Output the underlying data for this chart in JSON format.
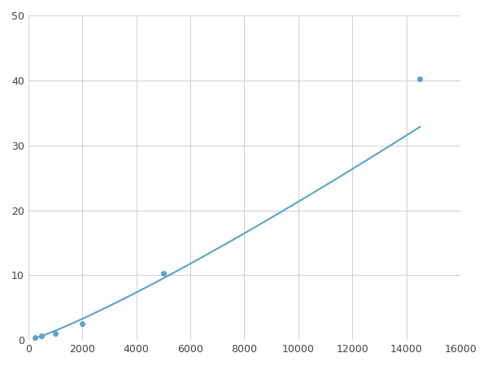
{
  "x": [
    250,
    500,
    1000,
    2000,
    5000,
    14500
  ],
  "y": [
    0.4,
    0.7,
    1.0,
    2.5,
    10.3,
    40.2
  ],
  "line_color": "#5ba3c9",
  "marker_color": "#5ba3c9",
  "marker_style": "o",
  "marker_size": 4,
  "line_width": 1.5,
  "xlim": [
    0,
    16000
  ],
  "ylim": [
    0,
    50
  ],
  "xticks": [
    0,
    2000,
    4000,
    6000,
    8000,
    10000,
    12000,
    14000,
    16000
  ],
  "yticks": [
    0,
    10,
    20,
    30,
    40,
    50
  ],
  "grid": true,
  "grid_color": "#d0d0d0",
  "background_color": "#ffffff",
  "figsize": [
    6.0,
    4.5
  ],
  "dpi": 100
}
